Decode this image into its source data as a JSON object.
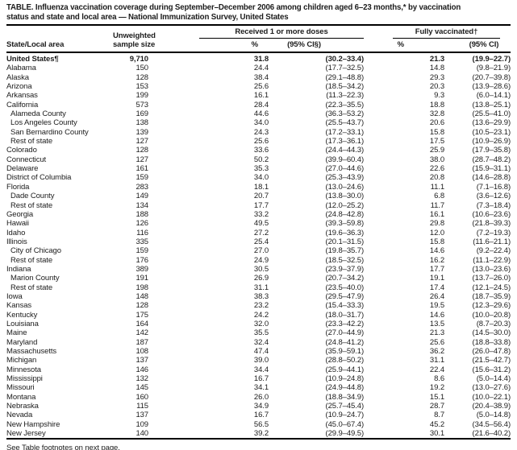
{
  "title": {
    "line1": "TABLE. Influenza vaccination coverage during September–December 2006 among children aged 6–23 months,* by vaccination",
    "line2": "status and state and local area — National Immunization Survey, United States"
  },
  "table": {
    "col_state": "State/Local area",
    "col_sample_line1": "Unweighted",
    "col_sample_line2": "sample size",
    "group1": "Received 1 or more doses",
    "group2": "Fully vaccinated†",
    "sub_pct1": "%",
    "sub_ci1": "(95% CI§)",
    "sub_pct2": "%",
    "sub_ci2": "(95% CI)",
    "rows": [
      {
        "area": "United States¶",
        "indent": false,
        "bold": true,
        "sample": "9,710",
        "dose1_pct": "31.8",
        "dose1_ci": "(30.2–33.4)",
        "full_pct": "21.3",
        "full_ci": "(19.9–22.7)"
      },
      {
        "area": "Alabama",
        "indent": false,
        "bold": false,
        "sample": "150",
        "dose1_pct": "24.4",
        "dose1_ci": "(17.7–32.5)",
        "full_pct": "14.8",
        "full_ci": "(9.8–21.9)"
      },
      {
        "area": "Alaska",
        "indent": false,
        "bold": false,
        "sample": "128",
        "dose1_pct": "38.4",
        "dose1_ci": "(29.1–48.8)",
        "full_pct": "29.3",
        "full_ci": "(20.7–39.8)"
      },
      {
        "area": "Arizona",
        "indent": false,
        "bold": false,
        "sample": "153",
        "dose1_pct": "25.6",
        "dose1_ci": "(18.5–34.2)",
        "full_pct": "20.3",
        "full_ci": "(13.9–28.6)"
      },
      {
        "area": "Arkansas",
        "indent": false,
        "bold": false,
        "sample": "199",
        "dose1_pct": "16.1",
        "dose1_ci": "(11.3–22.3)",
        "full_pct": "9.3",
        "full_ci": "(6.0–14.1)"
      },
      {
        "area": "California",
        "indent": false,
        "bold": false,
        "sample": "573",
        "dose1_pct": "28.4",
        "dose1_ci": "(22.3–35.5)",
        "full_pct": "18.8",
        "full_ci": "(13.8–25.1)"
      },
      {
        "area": "Alameda County",
        "indent": true,
        "bold": false,
        "sample": "169",
        "dose1_pct": "44.6",
        "dose1_ci": "(36.3–53.2)",
        "full_pct": "32.8",
        "full_ci": "(25.5–41.0)"
      },
      {
        "area": "Los Angeles County",
        "indent": true,
        "bold": false,
        "sample": "138",
        "dose1_pct": "34.0",
        "dose1_ci": "(25.5–43.7)",
        "full_pct": "20.6",
        "full_ci": "(13.6–29.9)"
      },
      {
        "area": "San Bernardino County",
        "indent": true,
        "bold": false,
        "sample": "139",
        "dose1_pct": "24.3",
        "dose1_ci": "(17.2–33.1)",
        "full_pct": "15.8",
        "full_ci": "(10.5–23.1)"
      },
      {
        "area": "Rest of state",
        "indent": true,
        "bold": false,
        "sample": "127",
        "dose1_pct": "25.6",
        "dose1_ci": "(17.3–36.1)",
        "full_pct": "17.5",
        "full_ci": "(10.9–26.9)"
      },
      {
        "area": "Colorado",
        "indent": false,
        "bold": false,
        "sample": "128",
        "dose1_pct": "33.6",
        "dose1_ci": "(24.4–44.3)",
        "full_pct": "25.9",
        "full_ci": "(17.9–35.8)"
      },
      {
        "area": "Connecticut",
        "indent": false,
        "bold": false,
        "sample": "127",
        "dose1_pct": "50.2",
        "dose1_ci": "(39.9–60.4)",
        "full_pct": "38.0",
        "full_ci": "(28.7–48.2)"
      },
      {
        "area": "Delaware",
        "indent": false,
        "bold": false,
        "sample": "161",
        "dose1_pct": "35.3",
        "dose1_ci": "(27.0–44.6)",
        "full_pct": "22.6",
        "full_ci": "(15.9–31.1)"
      },
      {
        "area": "District of Columbia",
        "indent": false,
        "bold": false,
        "sample": "159",
        "dose1_pct": "34.0",
        "dose1_ci": "(25.3–43.9)",
        "full_pct": "20.8",
        "full_ci": "(14.6–28.8)"
      },
      {
        "area": "Florida",
        "indent": false,
        "bold": false,
        "sample": "283",
        "dose1_pct": "18.1",
        "dose1_ci": "(13.0–24.6)",
        "full_pct": "11.1",
        "full_ci": "(7.1–16.8)"
      },
      {
        "area": "Dade County",
        "indent": true,
        "bold": false,
        "sample": "149",
        "dose1_pct": "20.7",
        "dose1_ci": "(13.8–30.0)",
        "full_pct": "6.8",
        "full_ci": "(3.6–12.6)"
      },
      {
        "area": "Rest of state",
        "indent": true,
        "bold": false,
        "sample": "134",
        "dose1_pct": "17.7",
        "dose1_ci": "(12.0–25.2)",
        "full_pct": "11.7",
        "full_ci": "(7.3–18.4)"
      },
      {
        "area": "Georgia",
        "indent": false,
        "bold": false,
        "sample": "188",
        "dose1_pct": "33.2",
        "dose1_ci": "(24.8–42.8)",
        "full_pct": "16.1",
        "full_ci": "(10.6–23.6)"
      },
      {
        "area": "Hawaii",
        "indent": false,
        "bold": false,
        "sample": "126",
        "dose1_pct": "49.5",
        "dose1_ci": "(39.3–59.8)",
        "full_pct": "29.8",
        "full_ci": "(21.8–39.3)"
      },
      {
        "area": "Idaho",
        "indent": false,
        "bold": false,
        "sample": "116",
        "dose1_pct": "27.2",
        "dose1_ci": "(19.6–36.3)",
        "full_pct": "12.0",
        "full_ci": "(7.2–19.3)"
      },
      {
        "area": "Illinois",
        "indent": false,
        "bold": false,
        "sample": "335",
        "dose1_pct": "25.4",
        "dose1_ci": "(20.1–31.5)",
        "full_pct": "15.8",
        "full_ci": "(11.6–21.1)"
      },
      {
        "area": "City of Chicago",
        "indent": true,
        "bold": false,
        "sample": "159",
        "dose1_pct": "27.0",
        "dose1_ci": "(19.8–35.7)",
        "full_pct": "14.6",
        "full_ci": "(9.2–22.4)"
      },
      {
        "area": "Rest of state",
        "indent": true,
        "bold": false,
        "sample": "176",
        "dose1_pct": "24.9",
        "dose1_ci": "(18.5–32.5)",
        "full_pct": "16.2",
        "full_ci": "(11.1–22.9)"
      },
      {
        "area": "Indiana",
        "indent": false,
        "bold": false,
        "sample": "389",
        "dose1_pct": "30.5",
        "dose1_ci": "(23.9–37.9)",
        "full_pct": "17.7",
        "full_ci": "(13.0–23.6)"
      },
      {
        "area": "Marion County",
        "indent": true,
        "bold": false,
        "sample": "191",
        "dose1_pct": "26.9",
        "dose1_ci": "(20.7–34.2)",
        "full_pct": "19.1",
        "full_ci": "(13.7–26.0)"
      },
      {
        "area": "Rest of state",
        "indent": true,
        "bold": false,
        "sample": "198",
        "dose1_pct": "31.1",
        "dose1_ci": "(23.5–40.0)",
        "full_pct": "17.4",
        "full_ci": "(12.1–24.5)"
      },
      {
        "area": "Iowa",
        "indent": false,
        "bold": false,
        "sample": "148",
        "dose1_pct": "38.3",
        "dose1_ci": "(29.5–47.9)",
        "full_pct": "26.4",
        "full_ci": "(18.7–35.9)"
      },
      {
        "area": "Kansas",
        "indent": false,
        "bold": false,
        "sample": "128",
        "dose1_pct": "23.2",
        "dose1_ci": "(15.4–33.3)",
        "full_pct": "19.5",
        "full_ci": "(12.3–29.6)"
      },
      {
        "area": "Kentucky",
        "indent": false,
        "bold": false,
        "sample": "175",
        "dose1_pct": "24.2",
        "dose1_ci": "(18.0–31.7)",
        "full_pct": "14.6",
        "full_ci": "(10.0–20.8)"
      },
      {
        "area": "Louisiana",
        "indent": false,
        "bold": false,
        "sample": "164",
        "dose1_pct": "32.0",
        "dose1_ci": "(23.3–42.2)",
        "full_pct": "13.5",
        "full_ci": "(8.7–20.3)"
      },
      {
        "area": "Maine",
        "indent": false,
        "bold": false,
        "sample": "142",
        "dose1_pct": "35.5",
        "dose1_ci": "(27.0–44.9)",
        "full_pct": "21.3",
        "full_ci": "(14.5–30.0)"
      },
      {
        "area": "Maryland",
        "indent": false,
        "bold": false,
        "sample": "187",
        "dose1_pct": "32.4",
        "dose1_ci": "(24.8–41.2)",
        "full_pct": "25.6",
        "full_ci": "(18.8–33.8)"
      },
      {
        "area": "Massachusetts",
        "indent": false,
        "bold": false,
        "sample": "108",
        "dose1_pct": "47.4",
        "dose1_ci": "(35.9–59.1)",
        "full_pct": "36.2",
        "full_ci": "(26.0–47.8)"
      },
      {
        "area": "Michigan",
        "indent": false,
        "bold": false,
        "sample": "137",
        "dose1_pct": "39.0",
        "dose1_ci": "(28.8–50.2)",
        "full_pct": "31.1",
        "full_ci": "(21.5–42.7)"
      },
      {
        "area": "Minnesota",
        "indent": false,
        "bold": false,
        "sample": "146",
        "dose1_pct": "34.4",
        "dose1_ci": "(25.9–44.1)",
        "full_pct": "22.4",
        "full_ci": "(15.6–31.2)"
      },
      {
        "area": "Mississippi",
        "indent": false,
        "bold": false,
        "sample": "132",
        "dose1_pct": "16.7",
        "dose1_ci": "(10.9–24.8)",
        "full_pct": "8.6",
        "full_ci": "(5.0–14.4)"
      },
      {
        "area": "Missouri",
        "indent": false,
        "bold": false,
        "sample": "145",
        "dose1_pct": "34.1",
        "dose1_ci": "(24.9–44.8)",
        "full_pct": "19.2",
        "full_ci": "(13.0–27.6)"
      },
      {
        "area": "Montana",
        "indent": false,
        "bold": false,
        "sample": "160",
        "dose1_pct": "26.0",
        "dose1_ci": "(18.8–34.9)",
        "full_pct": "15.1",
        "full_ci": "(10.0–22.1)"
      },
      {
        "area": "Nebraska",
        "indent": false,
        "bold": false,
        "sample": "115",
        "dose1_pct": "34.9",
        "dose1_ci": "(25.7–45.4)",
        "full_pct": "28.7",
        "full_ci": "(20.4–38.9)"
      },
      {
        "area": "Nevada",
        "indent": false,
        "bold": false,
        "sample": "137",
        "dose1_pct": "16.7",
        "dose1_ci": "(10.9–24.7)",
        "full_pct": "8.7",
        "full_ci": "(5.0–14.8)"
      },
      {
        "area": "New Hampshire",
        "indent": false,
        "bold": false,
        "sample": "109",
        "dose1_pct": "56.5",
        "dose1_ci": "(45.0–67.4)",
        "full_pct": "45.2",
        "full_ci": "(34.5–56.4)"
      },
      {
        "area": "New Jersey",
        "indent": false,
        "bold": false,
        "sample": "140",
        "dose1_pct": "39.2",
        "dose1_ci": "(29.9–49.5)",
        "full_pct": "30.1",
        "full_ci": "(21.6–40.2)"
      }
    ]
  },
  "footer": "See Table footnotes on next page."
}
